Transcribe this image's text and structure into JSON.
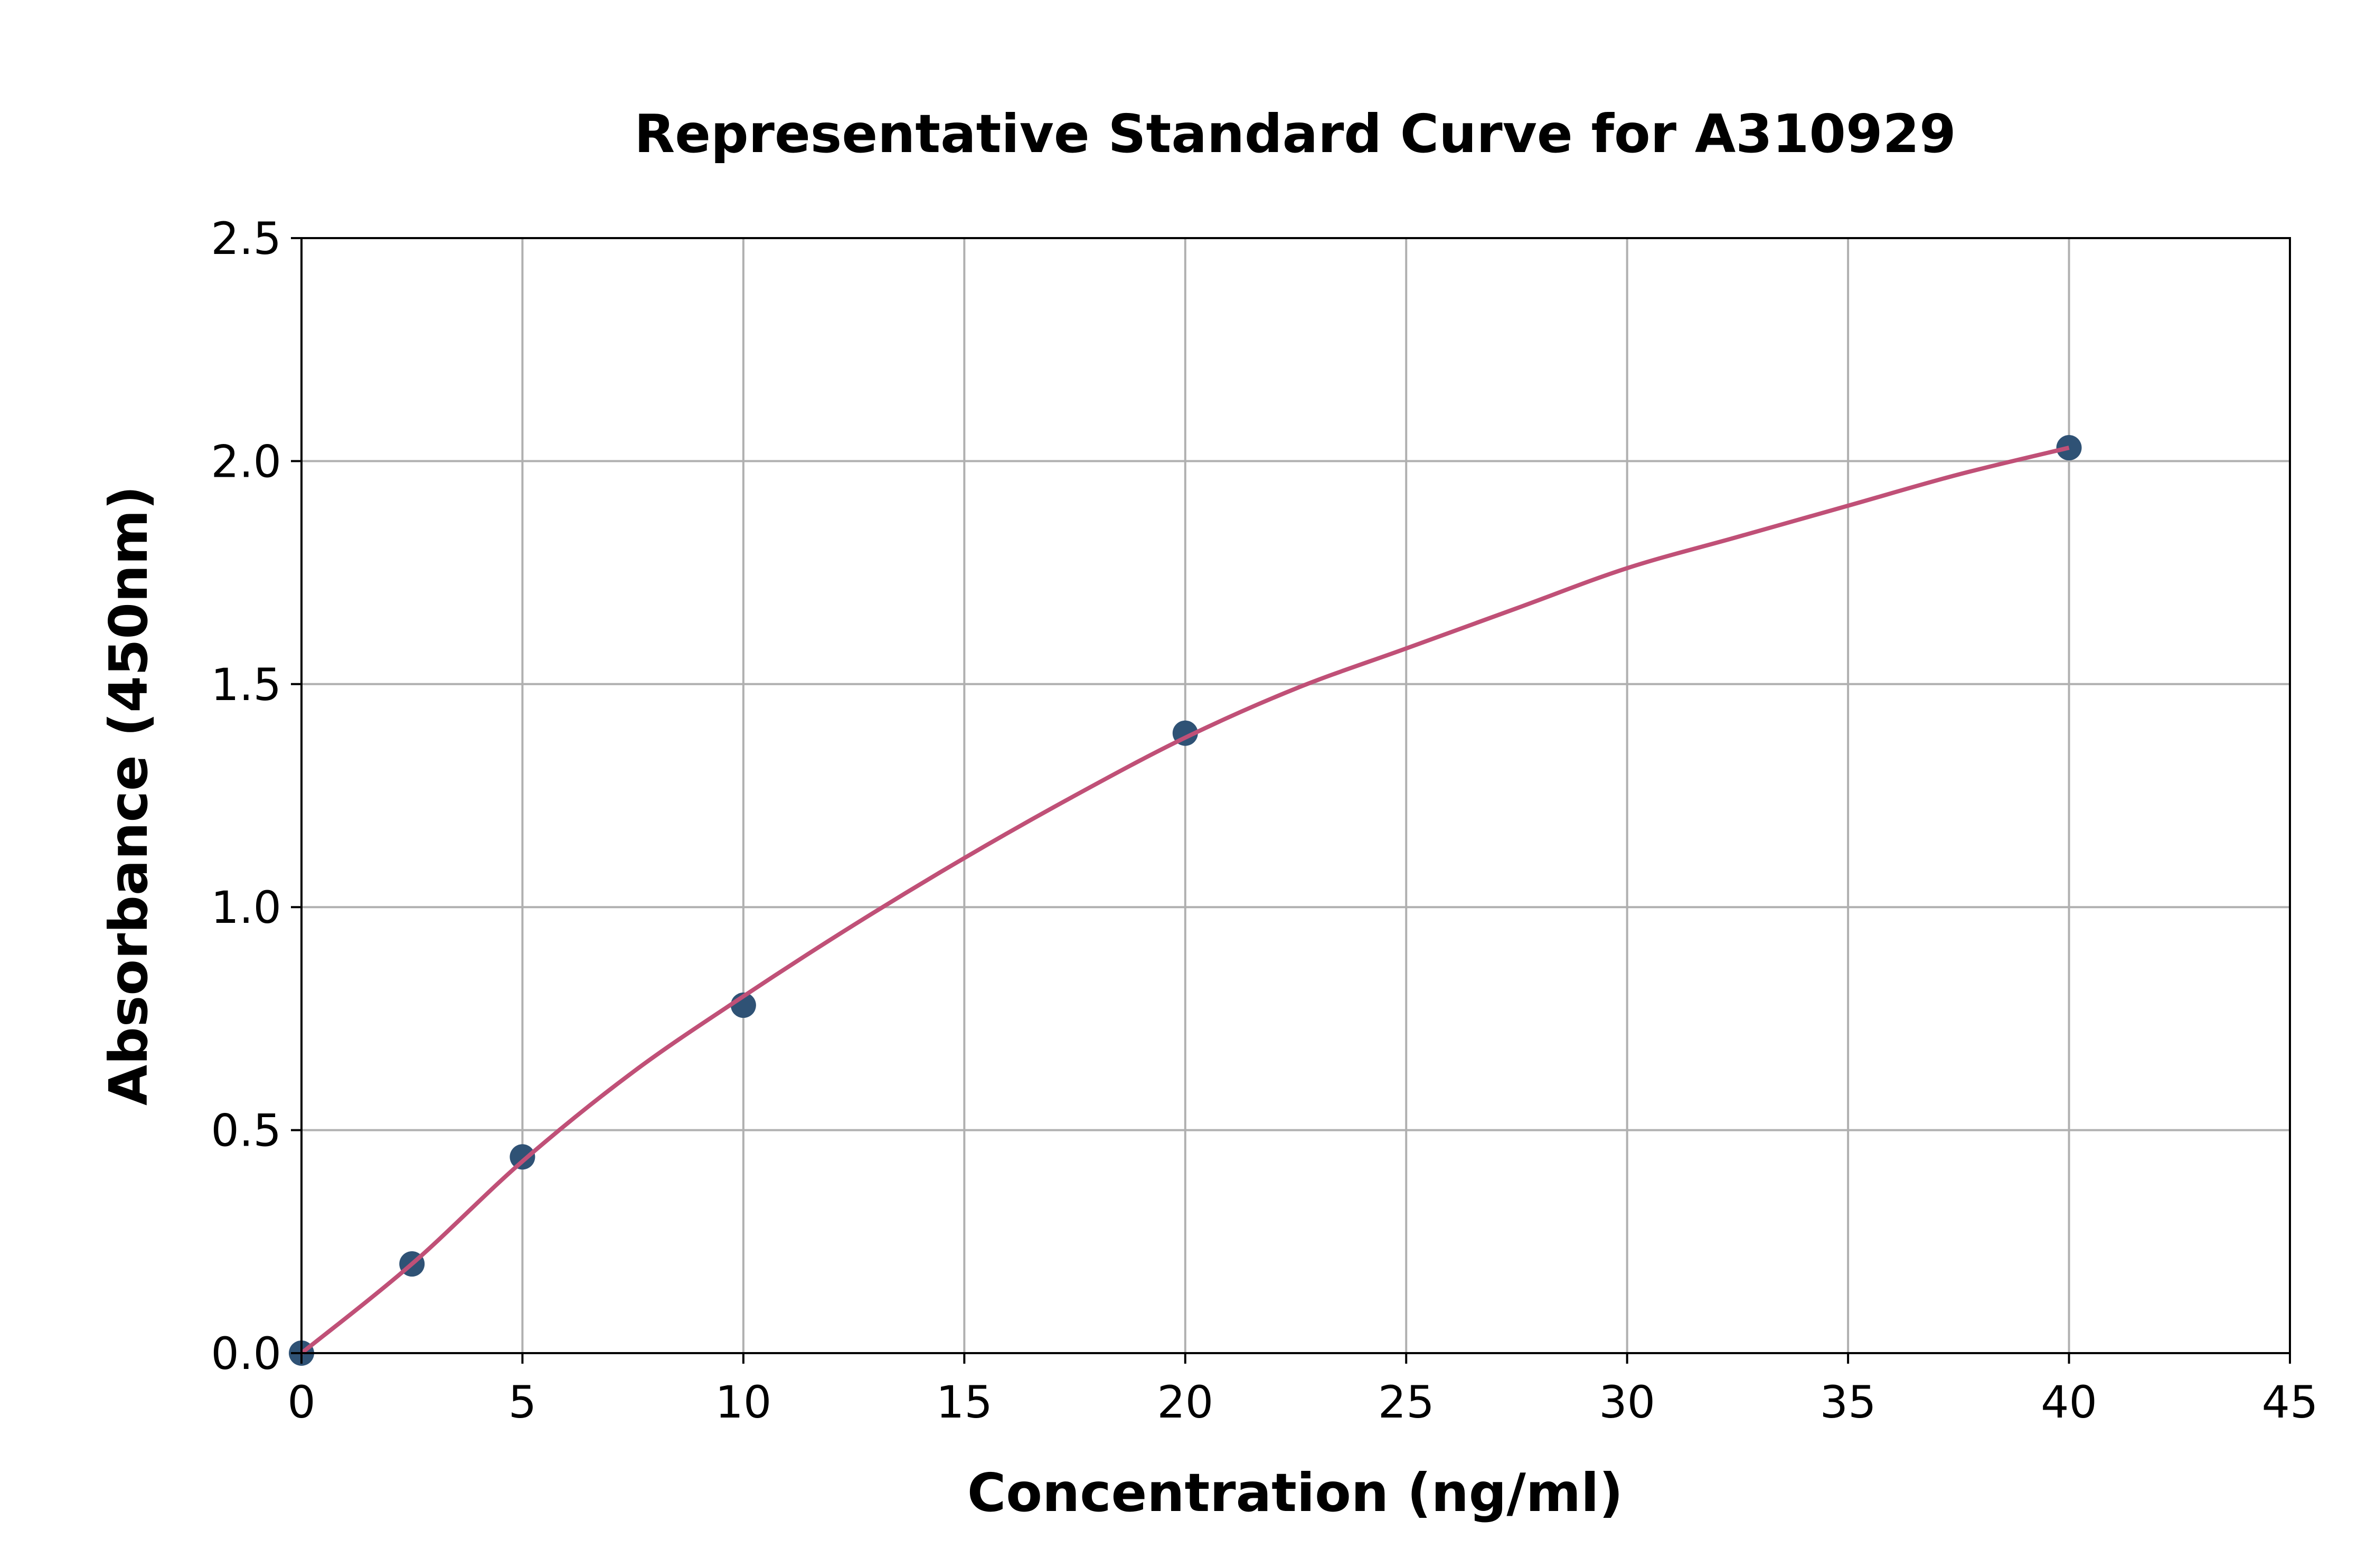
{
  "chart_data": {
    "type": "scatter",
    "title": "Representative Standard Curve for A310929",
    "xlabel": "Concentration (ng/ml)",
    "ylabel": "Absorbance (450nm)",
    "xlim": [
      0,
      45
    ],
    "ylim": [
      0,
      2.5
    ],
    "xticks": [
      "0",
      "5",
      "10",
      "15",
      "20",
      "25",
      "30",
      "35",
      "40",
      "45"
    ],
    "yticks": [
      "0.0",
      "0.5",
      "1.0",
      "1.5",
      "2.0",
      "2.5"
    ],
    "grid": true,
    "points": {
      "x": [
        0,
        2.5,
        5,
        10,
        20,
        40
      ],
      "y": [
        0.0,
        0.2,
        0.44,
        0.78,
        1.39,
        2.03
      ],
      "color": "#2f5275"
    },
    "fit_curve": {
      "x": [
        0,
        2.5,
        5,
        7.5,
        10,
        12.5,
        15,
        17.5,
        20,
        22.5,
        25,
        27.5,
        30,
        32.5,
        35,
        37.5,
        40
      ],
      "y": [
        0,
        0.2,
        0.43,
        0.63,
        0.8,
        0.96,
        1.11,
        1.25,
        1.38,
        1.49,
        1.58,
        1.67,
        1.76,
        1.83,
        1.9,
        1.97,
        2.03
      ],
      "color": "#c05077"
    }
  }
}
